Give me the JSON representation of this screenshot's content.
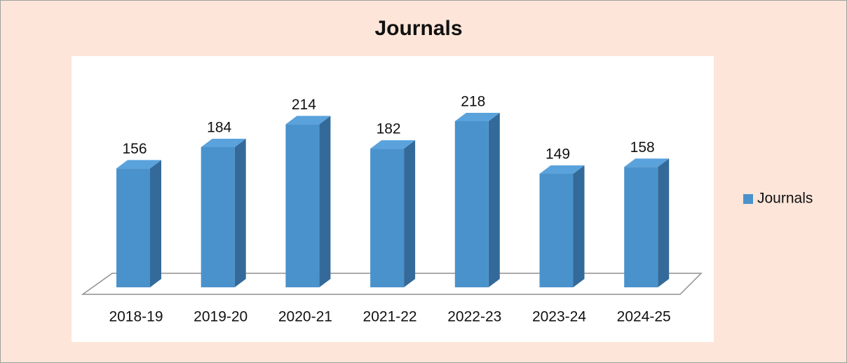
{
  "chart_data": {
    "type": "bar3d",
    "title": "Journals",
    "categories": [
      "2018-19",
      "2019-20",
      "2020-21",
      "2021-22",
      "2022-23",
      "2023-24",
      "2024-25"
    ],
    "series": [
      {
        "name": "Journals",
        "color": "#4a92cc",
        "values": [
          156,
          184,
          214,
          182,
          218,
          149,
          158
        ]
      }
    ],
    "legend": "right"
  }
}
